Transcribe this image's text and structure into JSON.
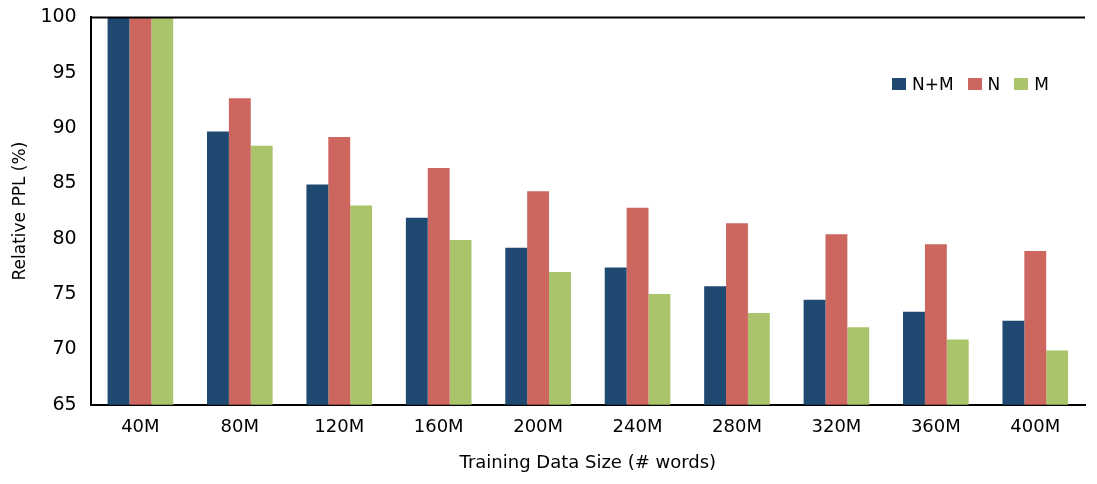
{
  "chart_data": {
    "type": "bar",
    "xlabel": "Training Data Size (# words)",
    "ylabel": "Relative PPL (%)",
    "categories": [
      "40M",
      "80M",
      "120M",
      "160M",
      "200M",
      "240M",
      "280M",
      "320M",
      "360M",
      "400M"
    ],
    "series": [
      {
        "name": "N+M",
        "color": "#1f4970",
        "values": [
          100,
          89.7,
          84.9,
          81.9,
          79.2,
          77.4,
          75.7,
          74.5,
          73.4,
          72.6
        ]
      },
      {
        "name": "N",
        "color": "#cd665f",
        "values": [
          100,
          92.7,
          89.2,
          86.4,
          84.3,
          82.8,
          81.4,
          80.4,
          79.5,
          78.9
        ]
      },
      {
        "name": "M",
        "color": "#a9c46a",
        "values": [
          100,
          88.4,
          83.0,
          79.9,
          77.0,
          75.0,
          73.3,
          72.0,
          70.9,
          69.9
        ]
      }
    ],
    "ylim": [
      65,
      100
    ],
    "yticks": [
      65,
      70,
      75,
      80,
      85,
      90,
      95,
      100
    ],
    "grid": false,
    "legend": "top right"
  }
}
